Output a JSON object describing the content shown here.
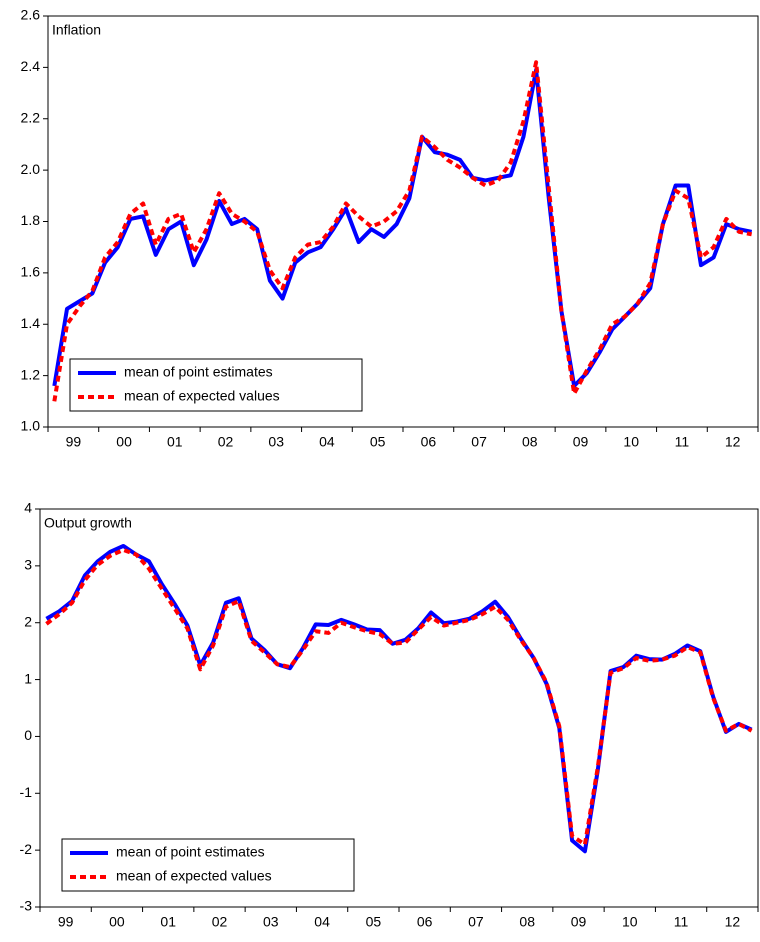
{
  "chart_data": [
    {
      "type": "line",
      "title": "Inflation",
      "categories": [
        null,
        "99",
        null,
        null,
        null,
        "00",
        null,
        null,
        null,
        "01",
        null,
        null,
        null,
        "02",
        null,
        null,
        null,
        "03",
        null,
        null,
        null,
        "04",
        null,
        null,
        null,
        "05",
        null,
        null,
        null,
        "06",
        null,
        null,
        null,
        "07",
        null,
        null,
        null,
        "08",
        null,
        null,
        null,
        "09",
        null,
        null,
        null,
        "10",
        null,
        null,
        null,
        "11",
        null,
        null,
        null,
        "12",
        null,
        null
      ],
      "series": [
        {
          "name": "mean of point estimates",
          "color": "#0000ff",
          "values": [
            1.16,
            1.46,
            1.49,
            1.52,
            1.64,
            1.7,
            1.81,
            1.82,
            1.67,
            1.77,
            1.8,
            1.63,
            1.73,
            1.88,
            1.79,
            1.81,
            1.77,
            1.57,
            1.5,
            1.64,
            1.68,
            1.7,
            1.77,
            1.85,
            1.72,
            1.77,
            1.74,
            1.79,
            1.89,
            2.13,
            2.07,
            2.06,
            2.04,
            1.97,
            1.96,
            1.97,
            1.98,
            2.13,
            2.39,
            1.89,
            1.45,
            1.16,
            1.21,
            1.29,
            1.38,
            1.43,
            1.48,
            1.54,
            1.79,
            1.94,
            1.94,
            1.63,
            1.66,
            1.79,
            1.77,
            1.76
          ]
        },
        {
          "name": "mean of expected values",
          "color": "#ff0000",
          "dashed": true,
          "values": [
            1.1,
            1.4,
            1.47,
            1.53,
            1.66,
            1.72,
            1.83,
            1.87,
            1.71,
            1.81,
            1.83,
            1.68,
            1.77,
            1.91,
            1.83,
            1.8,
            1.76,
            1.61,
            1.54,
            1.66,
            1.71,
            1.72,
            1.78,
            1.87,
            1.82,
            1.78,
            1.8,
            1.84,
            1.92,
            2.13,
            2.09,
            2.04,
            2.01,
            1.97,
            1.94,
            1.96,
            2.03,
            2.19,
            2.42,
            1.93,
            1.45,
            1.13,
            1.22,
            1.3,
            1.4,
            1.43,
            1.48,
            1.56,
            1.79,
            1.92,
            1.89,
            1.66,
            1.7,
            1.81,
            1.76,
            1.75
          ]
        }
      ],
      "ylim": [
        1.0,
        2.6
      ],
      "yticks": [
        {
          "value": 1.0,
          "label": "1.0"
        },
        {
          "value": 1.2,
          "label": "1.2"
        },
        {
          "value": 1.4,
          "label": "1.4"
        },
        {
          "value": 1.6,
          "label": "1.6"
        },
        {
          "value": 1.8,
          "label": "1.8"
        },
        {
          "value": 2.0,
          "label": "2.0"
        },
        {
          "value": 2.2,
          "label": "2.2"
        },
        {
          "value": 2.4,
          "label": "2.4"
        },
        {
          "value": 2.6,
          "label": "2.6"
        }
      ],
      "legend": "lower left"
    },
    {
      "type": "line",
      "title": "Output growth",
      "categories": [
        null,
        "99",
        null,
        null,
        null,
        "00",
        null,
        null,
        null,
        "01",
        null,
        null,
        null,
        "02",
        null,
        null,
        null,
        "03",
        null,
        null,
        null,
        "04",
        null,
        null,
        null,
        "05",
        null,
        null,
        null,
        "06",
        null,
        null,
        null,
        "07",
        null,
        null,
        null,
        "08",
        null,
        null,
        null,
        "09",
        null,
        null,
        null,
        "10",
        null,
        null,
        null,
        "11",
        null,
        null,
        null,
        "12",
        null,
        null
      ],
      "series": [
        {
          "name": "mean of point estimates",
          "color": "#0000ff",
          "values": [
            2.07,
            2.2,
            2.38,
            2.83,
            3.08,
            3.25,
            3.35,
            3.2,
            3.08,
            2.68,
            2.33,
            1.95,
            1.25,
            1.65,
            2.35,
            2.43,
            1.72,
            1.52,
            1.27,
            1.2,
            1.55,
            1.97,
            1.96,
            2.05,
            1.97,
            1.88,
            1.87,
            1.63,
            1.7,
            1.9,
            2.18,
            1.99,
            2.02,
            2.07,
            2.2,
            2.37,
            2.1,
            1.72,
            1.38,
            0.93,
            0.15,
            -1.83,
            -2.02,
            -0.6,
            1.15,
            1.22,
            1.42,
            1.36,
            1.35,
            1.45,
            1.6,
            1.5,
            0.7,
            0.08,
            0.22,
            0.12
          ]
        },
        {
          "name": "mean of expected values",
          "color": "#ff0000",
          "dashed": true,
          "values": [
            1.98,
            2.15,
            2.35,
            2.75,
            3.02,
            3.18,
            3.28,
            3.2,
            2.95,
            2.6,
            2.25,
            1.9,
            1.18,
            1.6,
            2.28,
            2.38,
            1.68,
            1.48,
            1.27,
            1.22,
            1.52,
            1.85,
            1.82,
            2.0,
            1.92,
            1.85,
            1.8,
            1.63,
            1.65,
            1.88,
            2.1,
            1.95,
            2.0,
            2.05,
            2.15,
            2.28,
            2.05,
            1.7,
            1.38,
            0.95,
            0.18,
            -1.75,
            -1.9,
            -0.55,
            1.12,
            1.2,
            1.38,
            1.33,
            1.35,
            1.42,
            1.57,
            1.48,
            0.68,
            0.1,
            0.22,
            0.1
          ]
        }
      ],
      "ylim": [
        -3,
        4
      ],
      "yticks": [
        -3,
        -2,
        -1,
        0,
        1,
        2,
        3,
        4
      ],
      "legend": "lower left"
    }
  ]
}
